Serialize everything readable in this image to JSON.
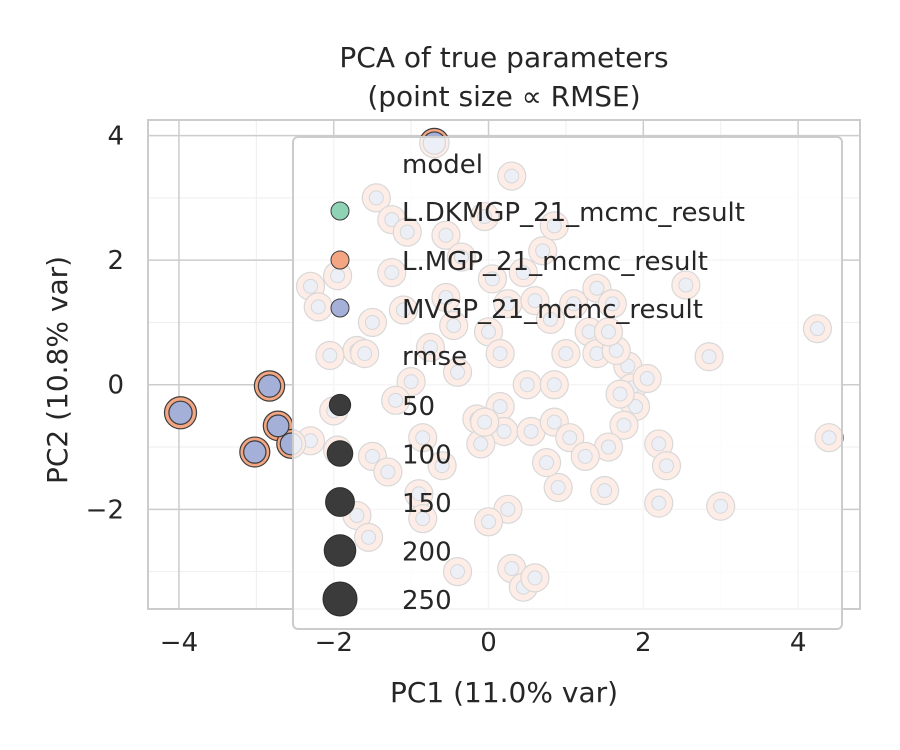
{
  "chart_data": {
    "type": "scatter",
    "title_line1": "PCA of true parameters",
    "title_line2": "(point size ∝ RMSE)",
    "xlabel": "PC1 (11.0% var)",
    "ylabel": "PC2 (10.8% var)",
    "xlim": [
      -4.4,
      4.8
    ],
    "ylim": [
      -3.6,
      4.25
    ],
    "xticks": [
      -4,
      -2,
      0,
      2,
      4
    ],
    "yticks": [
      -2,
      0,
      2,
      4
    ],
    "xtick_labels": [
      "−4",
      "−2",
      "0",
      "2",
      "4"
    ],
    "ytick_labels": [
      "−2",
      "0",
      "2",
      "4"
    ],
    "grid": true,
    "legend": {
      "placement": "upper-center",
      "hue_title": "model",
      "size_title": "rmse",
      "size_entries": [
        {
          "label": "50",
          "value": 50
        },
        {
          "label": "100",
          "value": 100
        },
        {
          "label": "150",
          "value": 150
        },
        {
          "label": "200",
          "value": 200
        },
        {
          "label": "250",
          "value": 250
        }
      ]
    },
    "series": [
      {
        "name": "L.DKMGP_21_mcmc_result",
        "color": "#8dd3b4",
        "points": []
      },
      {
        "name": "L.MGP_21_mcmc_result",
        "color": "#f4a582",
        "points": [
          {
            "x": -3.98,
            "y": -0.45,
            "rmse": 210
          },
          {
            "x": -3.02,
            "y": -1.08,
            "rmse": 170
          },
          {
            "x": -2.83,
            "y": -0.02,
            "rmse": 175
          },
          {
            "x": -2.72,
            "y": -0.66,
            "rmse": 160
          },
          {
            "x": -2.55,
            "y": -0.95,
            "rmse": 150
          },
          {
            "x": -0.7,
            "y": 3.88,
            "rmse": 160
          }
        ]
      },
      {
        "name": "MVGP_21_mcmc_result",
        "color": "#a5b0d8",
        "points": [
          {
            "x": -3.98,
            "y": -0.45,
            "rmse": 70
          },
          {
            "x": -3.02,
            "y": -1.08,
            "rmse": 60
          },
          {
            "x": -2.83,
            "y": -0.02,
            "rmse": 60
          },
          {
            "x": -2.72,
            "y": -0.66,
            "rmse": 55
          },
          {
            "x": -2.55,
            "y": -0.95,
            "rmse": 55
          },
          {
            "x": -0.7,
            "y": 3.88,
            "rmse": 60
          }
        ]
      }
    ],
    "obscured_points": [
      {
        "x": -2.3,
        "y": 1.58
      },
      {
        "x": -2.2,
        "y": 1.25
      },
      {
        "x": -1.95,
        "y": 1.75
      },
      {
        "x": -1.7,
        "y": 0.55
      },
      {
        "x": -2.05,
        "y": 0.47
      },
      {
        "x": -1.45,
        "y": 3.0
      },
      {
        "x": -1.25,
        "y": 2.65
      },
      {
        "x": -1.05,
        "y": 2.45
      },
      {
        "x": -1.25,
        "y": 1.8
      },
      {
        "x": -1.1,
        "y": 1.2
      },
      {
        "x": -1.5,
        "y": 1.0
      },
      {
        "x": -1.6,
        "y": 0.5
      },
      {
        "x": -1.0,
        "y": 0.05
      },
      {
        "x": -1.2,
        "y": -0.25
      },
      {
        "x": -2.0,
        "y": -0.42
      },
      {
        "x": -2.3,
        "y": -0.9
      },
      {
        "x": -1.95,
        "y": -1.05
      },
      {
        "x": -1.5,
        "y": -1.15
      },
      {
        "x": -1.3,
        "y": -1.4
      },
      {
        "x": -1.7,
        "y": -2.1
      },
      {
        "x": -1.55,
        "y": -2.45
      },
      {
        "x": -0.85,
        "y": -0.85
      },
      {
        "x": -0.9,
        "y": -1.75
      },
      {
        "x": -0.6,
        "y": -1.3
      },
      {
        "x": -0.85,
        "y": -2.15
      },
      {
        "x": -0.4,
        "y": -3.0
      },
      {
        "x": -0.55,
        "y": 2.4
      },
      {
        "x": -0.35,
        "y": 2.05
      },
      {
        "x": -0.55,
        "y": 1.4
      },
      {
        "x": -0.45,
        "y": 0.95
      },
      {
        "x": -0.75,
        "y": 0.6
      },
      {
        "x": -0.4,
        "y": 0.2
      },
      {
        "x": -0.05,
        "y": 2.7
      },
      {
        "x": 0.3,
        "y": 3.35
      },
      {
        "x": 0.05,
        "y": 1.7
      },
      {
        "x": 0.25,
        "y": 1.3
      },
      {
        "x": 0.0,
        "y": 0.85
      },
      {
        "x": 0.15,
        "y": 0.5
      },
      {
        "x": -0.15,
        "y": -0.55
      },
      {
        "x": 0.15,
        "y": -0.35
      },
      {
        "x": 0.2,
        "y": -0.75
      },
      {
        "x": -0.1,
        "y": -0.95
      },
      {
        "x": 0.5,
        "y": 0.0
      },
      {
        "x": 0.45,
        "y": 1.8
      },
      {
        "x": 0.6,
        "y": 1.35
      },
      {
        "x": 0.7,
        "y": 2.15
      },
      {
        "x": 0.85,
        "y": 2.55
      },
      {
        "x": 0.8,
        "y": 1.05
      },
      {
        "x": 0.55,
        "y": -0.75
      },
      {
        "x": 0.85,
        "y": -0.6
      },
      {
        "x": 1.05,
        "y": -0.85
      },
      {
        "x": 0.85,
        "y": 0.0
      },
      {
        "x": 1.0,
        "y": 0.5
      },
      {
        "x": 1.1,
        "y": 1.3
      },
      {
        "x": 1.3,
        "y": 0.85
      },
      {
        "x": 1.4,
        "y": 0.5
      },
      {
        "x": 1.4,
        "y": 1.55
      },
      {
        "x": 1.6,
        "y": 1.3
      },
      {
        "x": 1.8,
        "y": 0.3
      },
      {
        "x": 1.65,
        "y": 0.55
      },
      {
        "x": 1.55,
        "y": 0.85
      },
      {
        "x": 1.85,
        "y": -0.05
      },
      {
        "x": 2.05,
        "y": 0.1
      },
      {
        "x": 1.9,
        "y": -0.35
      },
      {
        "x": 1.75,
        "y": -0.65
      },
      {
        "x": 1.55,
        "y": -1.0
      },
      {
        "x": 1.5,
        "y": -1.7
      },
      {
        "x": 1.25,
        "y": -1.15
      },
      {
        "x": 0.9,
        "y": -1.65
      },
      {
        "x": 0.75,
        "y": -1.25
      },
      {
        "x": 0.3,
        "y": -2.95
      },
      {
        "x": 0.45,
        "y": -3.25
      },
      {
        "x": 0.6,
        "y": -3.1
      },
      {
        "x": 0.25,
        "y": -2.0
      },
      {
        "x": 2.2,
        "y": -0.95
      },
      {
        "x": 2.3,
        "y": -1.3
      },
      {
        "x": 2.2,
        "y": -1.9
      },
      {
        "x": 2.55,
        "y": 1.6
      },
      {
        "x": 2.85,
        "y": 0.45
      },
      {
        "x": 3.0,
        "y": -1.95
      },
      {
        "x": 4.25,
        "y": 0.9
      },
      {
        "x": 4.4,
        "y": -0.85
      },
      {
        "x": -0.05,
        "y": -0.6
      },
      {
        "x": 0.0,
        "y": -2.2
      },
      {
        "x": 1.7,
        "y": -0.15
      }
    ]
  }
}
